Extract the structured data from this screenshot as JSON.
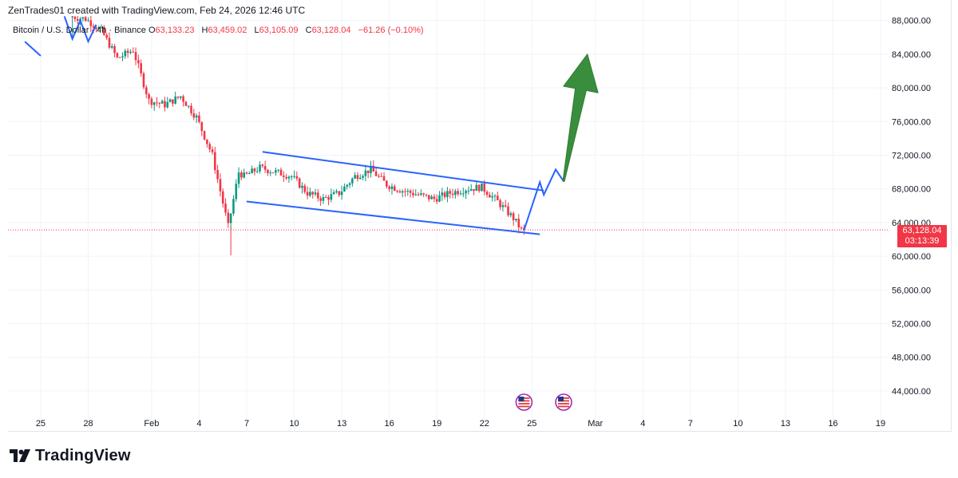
{
  "header": {
    "credit": "ZenTrades01 created with TradingView.com, Feb 24, 2026 12:46 UTC"
  },
  "legend": {
    "symbol": "Bitcoin / U.S. Dollar · 4h · Binance",
    "open_label": "O",
    "open": "63,133.23",
    "high_label": "H",
    "high": "63,459.02",
    "low_label": "L",
    "low": "63,105.09",
    "close_label": "C",
    "close": "63,128.04",
    "change": "−61.26 (−0.10%)"
  },
  "price_tag": {
    "price": "63,128.04",
    "countdown": "03:13:39"
  },
  "brand": {
    "name": "TradingView"
  },
  "colors": {
    "up": "#089981",
    "down": "#f23645",
    "channel": "#2962ff",
    "arrow": "#388e3c",
    "grid": "#f0f3fa"
  },
  "chart_data": {
    "type": "candlestick",
    "symbol": "BTCUSD",
    "interval": "4h",
    "y_ticks": [
      88000,
      84000,
      80000,
      76000,
      72000,
      68000,
      64000,
      60000,
      56000,
      52000,
      48000,
      44000
    ],
    "y_tick_labels": [
      "88,000.00",
      "84,000.00",
      "80,000.00",
      "76,000.00",
      "72,000.00",
      "68,000.00",
      "64,000.00",
      "60,000.00",
      "56,000.00",
      "52,000.00",
      "48,000.00",
      "44,000.00"
    ],
    "x_ticks": [
      {
        "label": "25",
        "date": "2026-01-25"
      },
      {
        "label": "28",
        "date": "2026-01-28"
      },
      {
        "label": "Feb",
        "date": "2026-02-01"
      },
      {
        "label": "4",
        "date": "2026-02-04"
      },
      {
        "label": "7",
        "date": "2026-02-07"
      },
      {
        "label": "10",
        "date": "2026-02-10"
      },
      {
        "label": "13",
        "date": "2026-02-13"
      },
      {
        "label": "16",
        "date": "2026-02-16"
      },
      {
        "label": "19",
        "date": "2026-02-19"
      },
      {
        "label": "22",
        "date": "2026-02-22"
      },
      {
        "label": "25",
        "date": "2026-02-25"
      },
      {
        "label": "Mar",
        "date": "2026-03-01"
      },
      {
        "label": "4",
        "date": "2026-03-04"
      },
      {
        "label": "7",
        "date": "2026-03-07"
      },
      {
        "label": "10",
        "date": "2026-03-10"
      },
      {
        "label": "13",
        "date": "2026-03-13"
      },
      {
        "label": "16",
        "date": "2026-03-16"
      },
      {
        "label": "19",
        "date": "2026-03-19"
      }
    ],
    "price_path": [
      [
        "2026-01-27",
        88500
      ],
      [
        "2026-01-28",
        88200
      ],
      [
        "2026-01-29",
        86800
      ],
      [
        "2026-01-30",
        83500
      ],
      [
        "2026-01-31",
        84500
      ],
      [
        "2026-02-01",
        78500
      ],
      [
        "2026-02-02",
        78000
      ],
      [
        "2026-02-03",
        79000
      ],
      [
        "2026-02-04",
        76500
      ],
      [
        "2026-02-05",
        72000
      ],
      [
        "2026-02-06",
        63500
      ],
      [
        "2026-02-06T16",
        70000
      ],
      [
        "2026-02-07",
        69500
      ],
      [
        "2026-02-08",
        70500
      ],
      [
        "2026-02-09",
        70000
      ],
      [
        "2026-02-10",
        69500
      ],
      [
        "2026-02-11",
        67500
      ],
      [
        "2026-02-12",
        66800
      ],
      [
        "2026-02-13",
        67500
      ],
      [
        "2026-02-14",
        69500
      ],
      [
        "2026-02-15",
        70300
      ],
      [
        "2026-02-16",
        68500
      ],
      [
        "2026-02-17",
        67800
      ],
      [
        "2026-02-18",
        67300
      ],
      [
        "2026-02-19",
        66800
      ],
      [
        "2026-02-20",
        67500
      ],
      [
        "2026-02-21",
        68000
      ],
      [
        "2026-02-22",
        68200
      ],
      [
        "2026-02-23",
        66500
      ],
      [
        "2026-02-24",
        64500
      ],
      [
        "2026-02-24T12",
        63128
      ]
    ],
    "last_price": 63128.04,
    "extremes": {
      "high_wick": 88600,
      "low_wick": 60100
    },
    "drawings": {
      "channel_upper": [
        [
          "2026-02-08",
          72400
        ],
        [
          "2026-02-25T18",
          67800
        ]
      ],
      "channel_lower": [
        [
          "2026-02-07",
          66500
        ],
        [
          "2026-02-25T12",
          62600
        ]
      ],
      "projection_path": [
        [
          "2026-02-24T12",
          63100
        ],
        [
          "2026-02-25T12",
          68800
        ],
        [
          "2026-02-25T18",
          67300
        ],
        [
          "2026-02-26T12",
          70300
        ],
        [
          "2026-02-27",
          68900
        ]
      ],
      "projection_arrow": {
        "from": [
          "2026-02-27",
          68900
        ],
        "to": [
          "2026-02-28T12",
          84000
        ]
      },
      "early_segment": [
        [
          "2026-01-24",
          85500
        ],
        [
          "2026-01-25",
          83800
        ]
      ],
      "top_zigzag": [
        [
          "2026-01-26T12",
          88500
        ],
        [
          "2026-01-27",
          85800
        ],
        [
          "2026-01-27T12",
          88000
        ],
        [
          "2026-01-28",
          85500
        ],
        [
          "2026-01-28T12",
          87500
        ]
      ]
    },
    "events": [
      {
        "date": "2026-02-24T12",
        "icon": "us-flag-event-icon"
      },
      {
        "date": "2026-02-27",
        "icon": "us-flag-event-icon"
      }
    ]
  }
}
